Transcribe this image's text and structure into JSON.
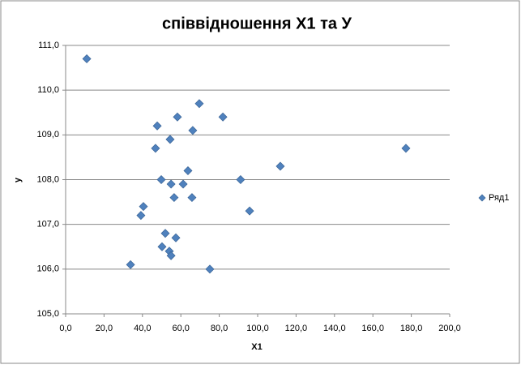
{
  "chart_data": {
    "type": "scatter",
    "title": "співвідношення X1 та У",
    "x_label": "X1",
    "y_label": "y",
    "series": [
      {
        "name": "Ряд1",
        "color": "#4f81bd",
        "x": [
          11.0,
          69.6,
          47.7,
          58.2,
          81.9,
          66.2,
          54.4,
          46.8,
          177.2,
          111.8,
          63.7,
          49.8,
          91.1,
          54.9,
          61.2,
          56.5,
          65.8,
          40.5,
          39.2,
          95.8,
          51.9,
          57.4,
          50.2,
          54.0,
          54.9,
          33.8,
          75.1
        ],
        "values": [
          110.7,
          109.7,
          109.2,
          109.4,
          109.4,
          109.1,
          108.9,
          108.7,
          108.7,
          108.3,
          108.2,
          108.0,
          108.0,
          107.9,
          107.9,
          107.6,
          107.6,
          107.4,
          107.2,
          107.3,
          106.8,
          106.7,
          106.5,
          106.4,
          106.3,
          106.1,
          106.0
        ]
      }
    ],
    "xlim": [
      0,
      200
    ],
    "xticks": [
      {
        "value": 0,
        "label": "0,0"
      },
      {
        "value": 20,
        "label": "20,0"
      },
      {
        "value": 40,
        "label": "40,0"
      },
      {
        "value": 60,
        "label": "60,0"
      },
      {
        "value": 80,
        "label": "80,0"
      },
      {
        "value": 100,
        "label": "100,0"
      },
      {
        "value": 120,
        "label": "120,0"
      },
      {
        "value": 140,
        "label": "140,0"
      },
      {
        "value": 160,
        "label": "160,0"
      },
      {
        "value": 180,
        "label": "180,0"
      },
      {
        "value": 200,
        "label": "200,0"
      }
    ],
    "ylim": [
      105,
      111
    ],
    "yticks": [
      {
        "value": 105,
        "label": "105,0"
      },
      {
        "value": 106,
        "label": "106,0"
      },
      {
        "value": 107,
        "label": "107,0"
      },
      {
        "value": 108,
        "label": "108,0"
      },
      {
        "value": 109,
        "label": "109,0"
      },
      {
        "value": 110,
        "label": "110,0"
      },
      {
        "value": 111,
        "label": "111,0"
      }
    ],
    "grid": true,
    "legend": "right"
  }
}
